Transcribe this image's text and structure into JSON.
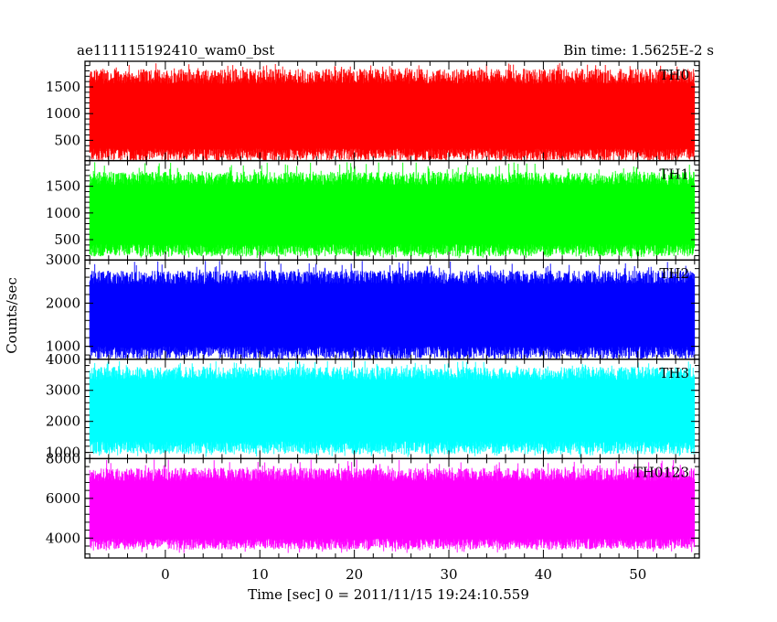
{
  "chart_data": {
    "type": "line",
    "title": "ae111115192410_wam0_bst",
    "subtitle": "Bin time: 1.5625E-2 s",
    "xlabel": "Time [sec] 0 = 2011/11/15 19:24:10.559",
    "ylabel": "Counts/sec",
    "xlim": [
      -8.5,
      56.5
    ],
    "x_range": [
      -8,
      56
    ],
    "x_ticks": [
      0,
      10,
      20,
      30,
      40,
      50
    ],
    "x_tick_labels": [
      "0",
      "10",
      "20",
      "30",
      "40",
      "50"
    ],
    "grid": false,
    "panels": [
      {
        "name": "TH0",
        "color": "#ff0000",
        "ylim": [
          120,
          1980
        ],
        "y_ticks": [
          500,
          1000,
          1500
        ],
        "y_tick_labels": [
          "500",
          "1000",
          "1500"
        ],
        "mean": 900,
        "low": 230,
        "high": 1700,
        "min": 150,
        "max": 1950
      },
      {
        "name": "TH1",
        "color": "#00ff00",
        "ylim": [
          120,
          1980
        ],
        "y_ticks": [
          500,
          1000,
          1500
        ],
        "y_tick_labels": [
          "500",
          "1000",
          "1500"
        ],
        "mean": 950,
        "low": 300,
        "high": 1650,
        "min": 150,
        "max": 1950
      },
      {
        "name": "TH2",
        "color": "#0000ff",
        "ylim": [
          700,
          3000
        ],
        "y_ticks": [
          1000,
          2000,
          3000
        ],
        "y_tick_labels": [
          "1000",
          "2000",
          "3000"
        ],
        "mean": 1700,
        "low": 850,
        "high": 2600,
        "min": 700,
        "max": 2980
      },
      {
        "name": "TH3",
        "color": "#00ffff",
        "ylim": [
          800,
          4000
        ],
        "y_ticks": [
          1000,
          2000,
          3000,
          4000
        ],
        "y_tick_labels": [
          "1000",
          "2000",
          "3000",
          "4000"
        ],
        "mean": 2350,
        "low": 1150,
        "high": 3550,
        "min": 850,
        "max": 3950
      },
      {
        "name": "TH0123",
        "color": "#ff00ff",
        "ylim": [
          3000,
          8000
        ],
        "y_ticks": [
          4000,
          6000,
          8000
        ],
        "y_tick_labels": [
          "4000",
          "6000",
          "8000"
        ],
        "mean": 5300,
        "low": 3700,
        "high": 7200,
        "min": 3250,
        "max": 7950
      }
    ]
  }
}
